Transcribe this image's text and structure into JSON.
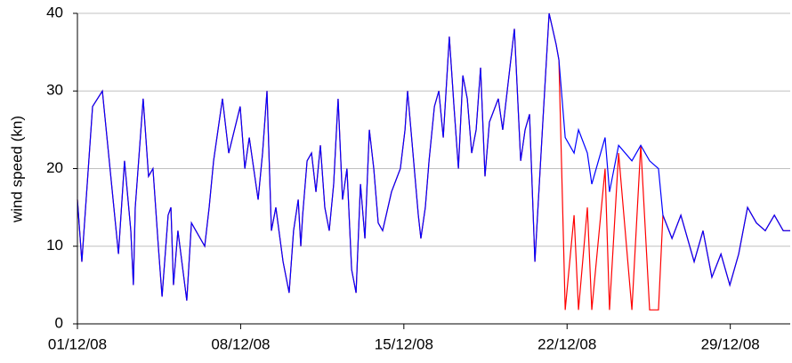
{
  "chart_data": {
    "type": "line",
    "y_label": "wind speed (kn)",
    "x": [
      0,
      0.19,
      0.65,
      1.07,
      1.76,
      2.02,
      2.29,
      2.4,
      2.48,
      2.82,
      3.05,
      3.24,
      3.47,
      3.63,
      3.89,
      4.01,
      4.12,
      4.31,
      4.69,
      4.89,
      5.46,
      5.65,
      5.84,
      6.03,
      6.22,
      6.49,
      6.98,
      7.18,
      7.37,
      7.75,
      7.94,
      8.13,
      8.32,
      8.51,
      8.82,
      9.08,
      9.27,
      9.47,
      9.58,
      9.66,
      9.85,
      10.04,
      10.23,
      10.42,
      10.61,
      10.8,
      10.99,
      11.18,
      11.37,
      11.56,
      11.76,
      11.95,
      12.14,
      12.33,
      12.52,
      12.71,
      12.9,
      13.09,
      13.47,
      13.85,
      14.05,
      14.16,
      14.62,
      14.73,
      14.92,
      15.08,
      15.31,
      15.5,
      15.69,
      15.95,
      16.15,
      16.34,
      16.53,
      16.72,
      16.91,
      17.1,
      17.29,
      17.48,
      17.67,
      18.05,
      18.24,
      18.74,
      19.01,
      19.2,
      19.39,
      19.62,
      19.96,
      20.23,
      20.53,
      20.65,
      20.92,
      21.3,
      21.49,
      21.87,
      22.06,
      22.63,
      22.82,
      23.21,
      23.78,
      24.16,
      24.54,
      24.92,
      25.11,
      25.5,
      25.88,
      26.45,
      26.83,
      27.21,
      27.6,
      27.98,
      28.36,
      28.74,
      29.12,
      29.5,
      29.89,
      30.27,
      30.57
    ],
    "series": [
      {
        "color": "#ff0000",
        "values": [
          16,
          8,
          28,
          30,
          9,
          21,
          12,
          5,
          15,
          29,
          19,
          20,
          10,
          3.5,
          14,
          15,
          5,
          12,
          3,
          13,
          10,
          15,
          21,
          25,
          29,
          22,
          28,
          20,
          24,
          16,
          22,
          30,
          12,
          15,
          8,
          4,
          12,
          16,
          10,
          14,
          21,
          22,
          17,
          23,
          15,
          12,
          18,
          29,
          16,
          20,
          7,
          4,
          18,
          11,
          25,
          20,
          13,
          12,
          17,
          20,
          25,
          30,
          14,
          11,
          15,
          21,
          28,
          30,
          24,
          37,
          28,
          20,
          32,
          29,
          22,
          25,
          33,
          19,
          26,
          29,
          25,
          38,
          21,
          25,
          27,
          8,
          26,
          40,
          36,
          34,
          1.8,
          14,
          1.8,
          15,
          1.8,
          20,
          1.8,
          22,
          1.8,
          23,
          1.8,
          1.8,
          14,
          11,
          14,
          8,
          12,
          6,
          9,
          5,
          9,
          15,
          13,
          12,
          14,
          12,
          12
        ]
      },
      {
        "color": "#0000ff",
        "values": [
          16,
          8,
          28,
          30,
          9,
          21,
          12,
          5,
          15,
          29,
          19,
          20,
          10,
          3.5,
          14,
          15,
          5,
          12,
          3,
          13,
          10,
          15,
          21,
          25,
          29,
          22,
          28,
          20,
          24,
          16,
          22,
          30,
          12,
          15,
          8,
          4,
          12,
          16,
          10,
          14,
          21,
          22,
          17,
          23,
          15,
          12,
          18,
          29,
          16,
          20,
          7,
          4,
          18,
          11,
          25,
          20,
          13,
          12,
          17,
          20,
          25,
          30,
          14,
          11,
          15,
          21,
          28,
          30,
          24,
          37,
          28,
          20,
          32,
          29,
          22,
          25,
          33,
          19,
          26,
          29,
          25,
          38,
          21,
          25,
          27,
          8,
          26,
          40,
          36,
          34,
          24,
          22,
          25,
          22,
          18,
          24,
          17,
          23,
          21,
          23,
          21,
          20,
          14,
          11,
          14,
          8,
          12,
          6,
          9,
          5,
          9,
          15,
          13,
          12,
          14,
          12,
          12
        ]
      }
    ],
    "xlim": [
      0,
      30.57
    ],
    "xticks": [
      {
        "value": 0,
        "label": "01/12/08"
      },
      {
        "value": 7,
        "label": "08/12/08"
      },
      {
        "value": 14,
        "label": "15/12/08"
      },
      {
        "value": 21,
        "label": "22/12/08"
      },
      {
        "value": 28,
        "label": "29/12/08"
      }
    ],
    "ylim": [
      0,
      40
    ],
    "yticks": [
      0,
      10,
      20,
      30,
      40
    ],
    "grid": true
  }
}
